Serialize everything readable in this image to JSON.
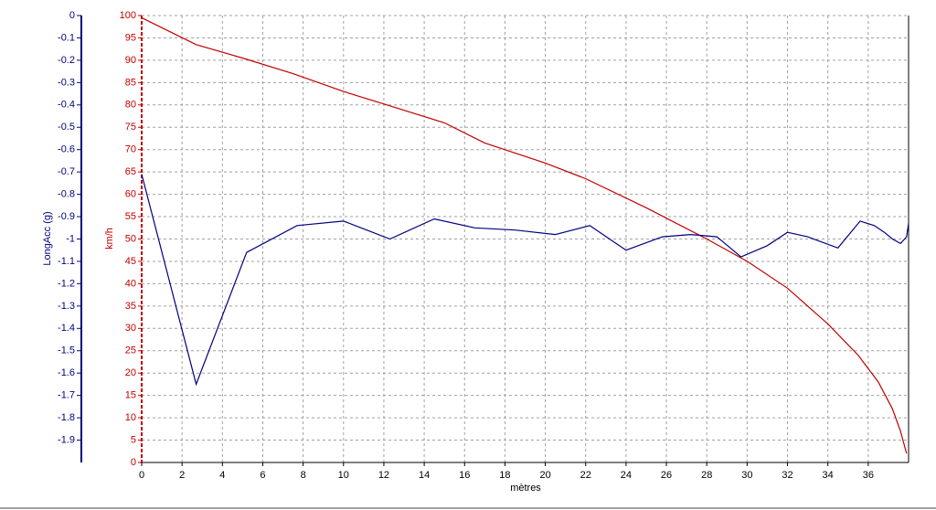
{
  "chart_data": {
    "type": "line",
    "xlabel": "mètres",
    "ylabel": "km/h",
    "y2label": "LongAcc (g)",
    "xlim": [
      0,
      38
    ],
    "xticks": [
      0,
      2,
      4,
      6,
      8,
      10,
      12,
      14,
      16,
      18,
      20,
      22,
      24,
      26,
      28,
      30,
      32,
      34,
      36
    ],
    "ylim": [
      0,
      100
    ],
    "yticks": [
      0,
      5,
      10,
      15,
      20,
      25,
      30,
      35,
      40,
      45,
      50,
      55,
      60,
      65,
      70,
      75,
      80,
      85,
      90,
      95,
      100
    ],
    "y2lim": [
      -2,
      0
    ],
    "y2ticks": [
      0,
      -0.1,
      -0.2,
      -0.3,
      -0.4,
      -0.5,
      -0.6,
      -0.7,
      -0.8,
      -0.9,
      -1,
      -1.1,
      -1.2,
      -1.3,
      -1.4,
      -1.5,
      -1.6,
      -1.7,
      -1.8,
      -1.9
    ],
    "grid": true,
    "series": [
      {
        "color": "#c00000",
        "axis": "y",
        "x": [
          0,
          2.7,
          5,
          7.5,
          10,
          12.5,
          15,
          17,
          20,
          22,
          25,
          28,
          30,
          32,
          34,
          35.5,
          36.5,
          37.2,
          37.6,
          37.9
        ],
        "values": [
          99.5,
          93.5,
          90.5,
          87,
          83,
          79.5,
          76,
          71.5,
          67,
          63.5,
          57,
          50,
          45,
          39,
          31,
          24,
          18,
          12,
          7,
          2
        ]
      },
      {
        "color": "#000080",
        "axis": "y2",
        "x": [
          0,
          2.7,
          5.2,
          7.7,
          10,
          12.3,
          14.5,
          16.5,
          18.5,
          20.5,
          22.2,
          24,
          25.8,
          27.2,
          28.5,
          29.7,
          31,
          32,
          33,
          34.5,
          35.6,
          36.3,
          36.8,
          37.2,
          37.6,
          37.9,
          38
        ],
        "values": [
          -0.71,
          -1.65,
          -1.06,
          -0.94,
          -0.92,
          -1.0,
          -0.91,
          -0.95,
          -0.96,
          -0.98,
          -0.94,
          -1.05,
          -0.99,
          -0.98,
          -0.99,
          -1.08,
          -1.03,
          -0.97,
          -0.99,
          -1.04,
          -0.92,
          -0.94,
          -0.97,
          -1.0,
          -1.02,
          -0.99,
          -0.93
        ]
      }
    ]
  }
}
